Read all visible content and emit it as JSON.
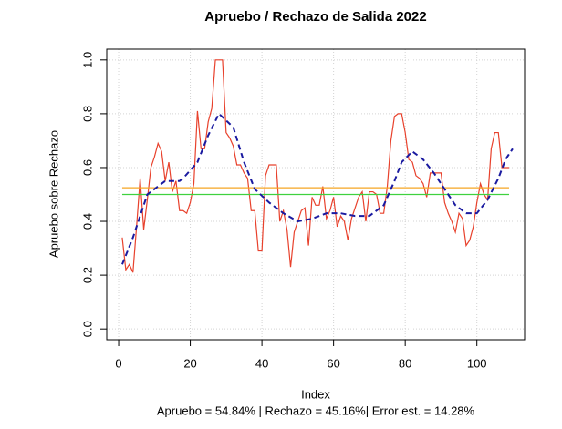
{
  "chart_data": {
    "type": "line",
    "title": "Apruebo / Rechazo de Salida 2022",
    "x_label": "Index",
    "y_label": "Apruebo sobre Rechazo",
    "subtitle": "Apruebo = 54.84% | Rechazo = 45.16%| Error est. = 14.28%",
    "xlim": [
      -3.32,
      113.32
    ],
    "ylim": [
      -0.04,
      1.04
    ],
    "xticks": [
      0,
      20,
      40,
      60,
      80,
      100
    ],
    "yticks": [
      {
        "value": 0,
        "label": "0.0"
      },
      0.2,
      0.4,
      0.6,
      0.8,
      {
        "value": 1,
        "label": "1.0"
      }
    ],
    "grid": true,
    "series": [
      {
        "color": "#e8412c",
        "dash": false,
        "x": [
          1,
          2,
          3,
          4,
          5,
          6,
          7,
          8,
          9,
          10,
          11,
          12,
          13,
          14,
          15,
          16,
          17,
          18,
          19,
          20,
          21,
          22,
          23,
          24,
          25,
          26,
          27,
          28,
          29,
          30,
          31,
          32,
          33,
          34,
          35,
          36,
          37,
          38,
          39,
          40,
          41,
          42,
          43,
          44,
          45,
          46,
          47,
          48,
          49,
          50,
          51,
          52,
          53,
          54,
          55,
          56,
          57,
          58,
          59,
          60,
          61,
          62,
          63,
          64,
          65,
          66,
          67,
          68,
          69,
          70,
          71,
          72,
          73,
          74,
          75,
          76,
          77,
          78,
          79,
          80,
          81,
          82,
          83,
          84,
          85,
          86,
          87,
          88,
          89,
          90,
          91,
          92,
          93,
          94,
          95,
          96,
          97,
          98,
          99,
          100,
          101,
          102,
          103,
          104,
          105,
          106,
          107,
          108,
          109
        ],
        "values": [
          0.34,
          0.22,
          0.24,
          0.21,
          0.38,
          0.56,
          0.37,
          0.48,
          0.6,
          0.64,
          0.69,
          0.66,
          0.55,
          0.62,
          0.51,
          0.55,
          0.44,
          0.44,
          0.43,
          0.47,
          0.54,
          0.81,
          0.67,
          0.67,
          0.77,
          0.82,
          1.0,
          1.0,
          1.0,
          0.73,
          0.71,
          0.68,
          0.61,
          0.61,
          0.58,
          0.56,
          0.44,
          0.44,
          0.29,
          0.29,
          0.57,
          0.61,
          0.61,
          0.61,
          0.4,
          0.44,
          0.37,
          0.23,
          0.36,
          0.4,
          0.44,
          0.45,
          0.31,
          0.49,
          0.46,
          0.46,
          0.53,
          0.41,
          0.44,
          0.49,
          0.38,
          0.42,
          0.4,
          0.33,
          0.41,
          0.45,
          0.49,
          0.51,
          0.4,
          0.51,
          0.51,
          0.5,
          0.43,
          0.43,
          0.53,
          0.7,
          0.79,
          0.8,
          0.8,
          0.73,
          0.63,
          0.62,
          0.57,
          0.56,
          0.54,
          0.49,
          0.58,
          0.58,
          0.58,
          0.58,
          0.47,
          0.43,
          0.4,
          0.36,
          0.43,
          0.41,
          0.31,
          0.33,
          0.38,
          0.47,
          0.54,
          0.5,
          0.48,
          0.67,
          0.73,
          0.73,
          0.6,
          0.6,
          0.6
        ]
      },
      {
        "color": "#f5a623",
        "dash": false,
        "x": [
          1,
          109
        ],
        "values": [
          0.525,
          0.525
        ]
      },
      {
        "color": "#3fd13f",
        "dash": false,
        "x": [
          1,
          109
        ],
        "values": [
          0.5,
          0.5
        ]
      },
      {
        "color": "#1a1aa0",
        "dash": true,
        "x": [
          1,
          4,
          8,
          13,
          17,
          18,
          22,
          25,
          28,
          32,
          35,
          38,
          42,
          46,
          50,
          54,
          58,
          62,
          66,
          70,
          74,
          77,
          79,
          82,
          85,
          88,
          91,
          94,
          97,
          100,
          103,
          106,
          108,
          110
        ],
        "values": [
          0.24,
          0.34,
          0.5,
          0.55,
          0.55,
          0.56,
          0.62,
          0.72,
          0.8,
          0.75,
          0.62,
          0.52,
          0.47,
          0.43,
          0.4,
          0.41,
          0.43,
          0.43,
          0.42,
          0.42,
          0.46,
          0.55,
          0.62,
          0.66,
          0.63,
          0.58,
          0.52,
          0.46,
          0.43,
          0.43,
          0.48,
          0.56,
          0.63,
          0.67
        ]
      }
    ]
  }
}
